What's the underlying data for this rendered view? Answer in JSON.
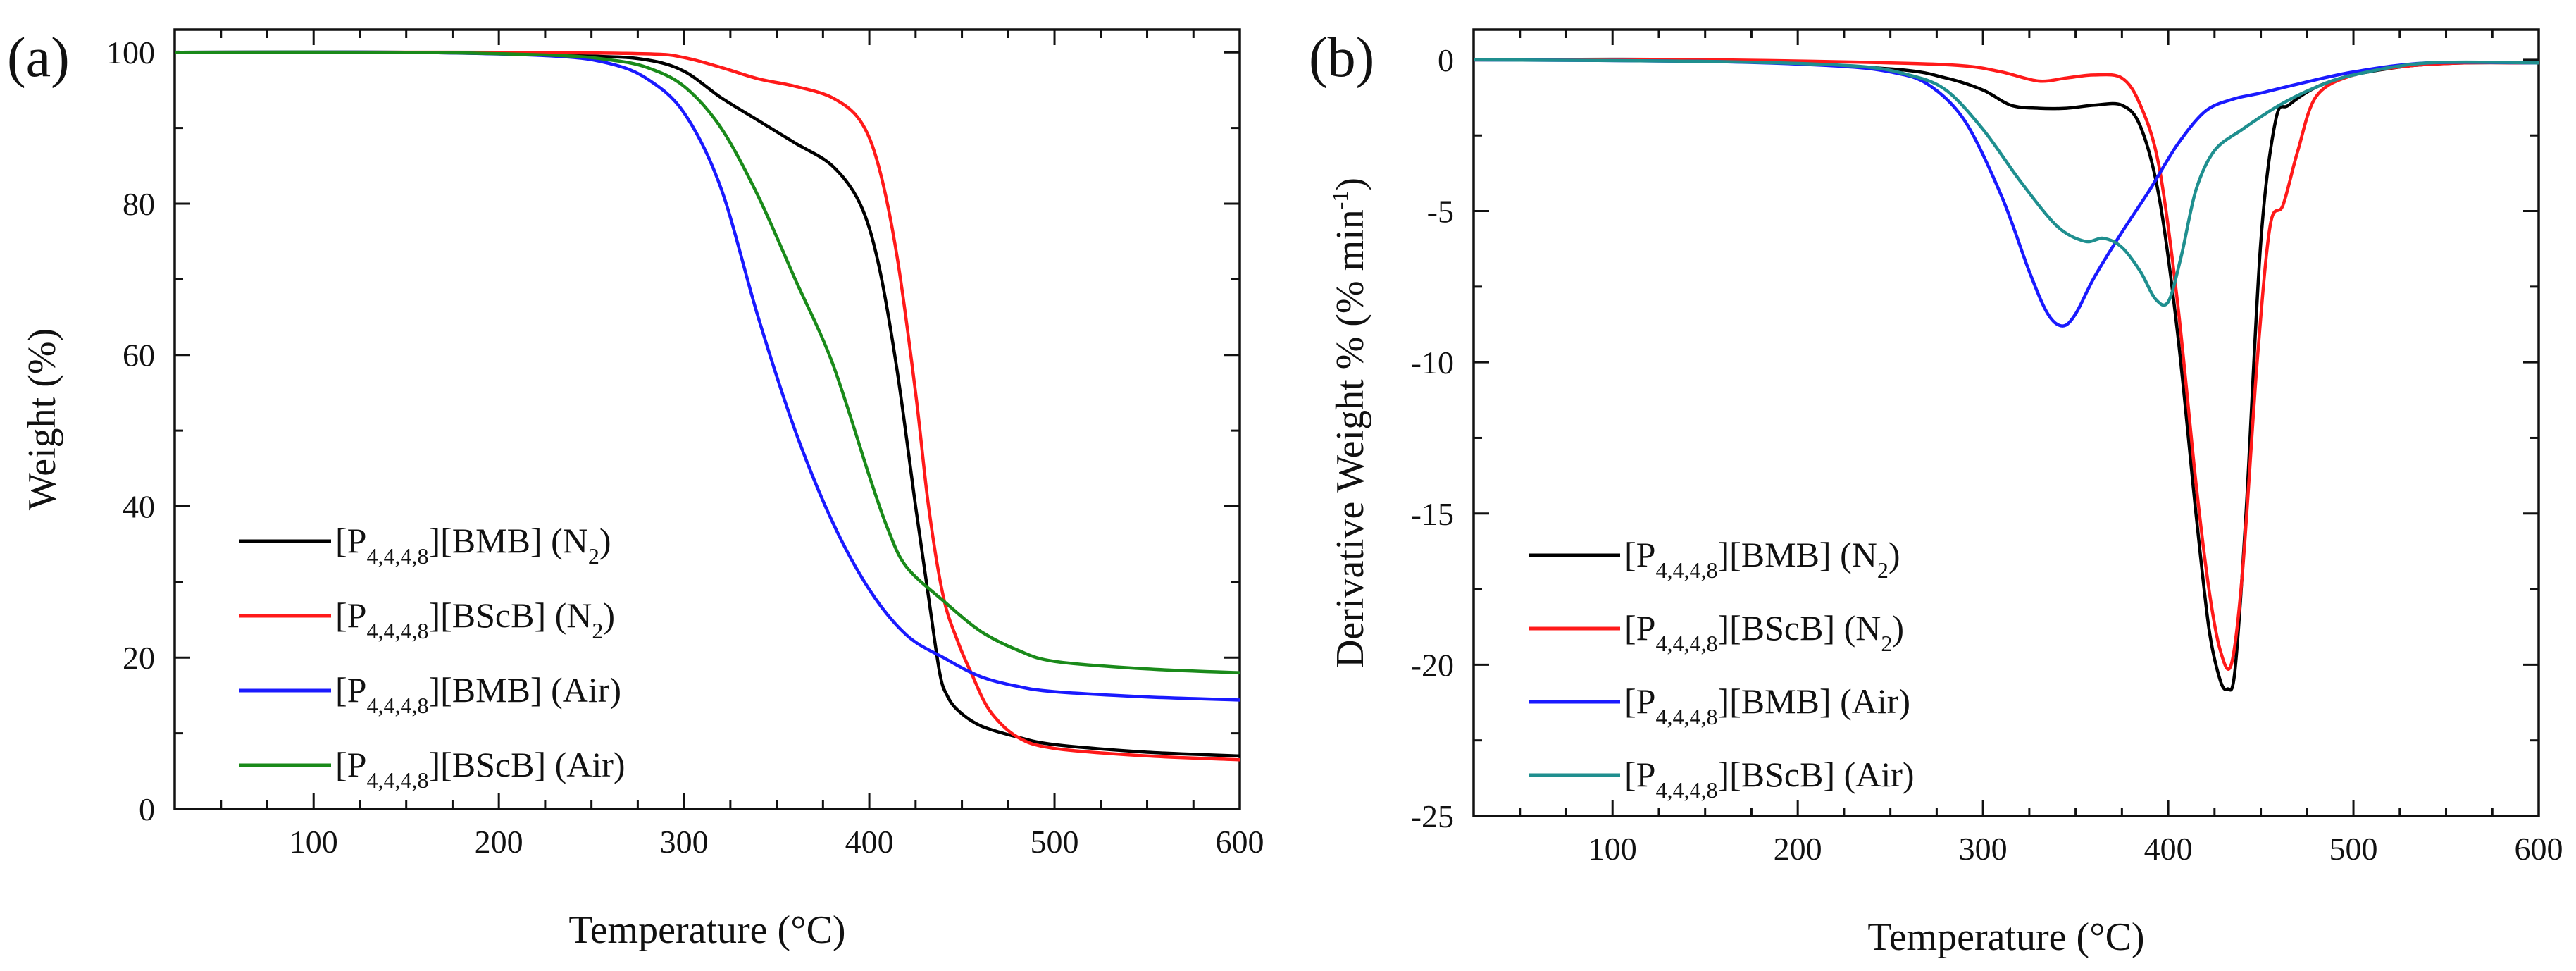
{
  "chart_data": [
    {
      "panel": "(a)",
      "type": "line",
      "title": "",
      "xlabel": "Temperature (°C)",
      "ylabel": "Weight (%)",
      "xlim": [
        25,
        600
      ],
      "ylim": [
        0,
        103
      ],
      "xticks": [
        100,
        200,
        300,
        400,
        500,
        600
      ],
      "yticks": [
        0,
        20,
        40,
        60,
        80,
        100
      ],
      "xtick_labels": [
        "100",
        "200",
        "300",
        "400",
        "500",
        "600"
      ],
      "ytick_labels": [
        "0",
        "20",
        "40",
        "60",
        "80",
        "100"
      ],
      "legend_position": "lower-left",
      "grid": false,
      "series": [
        {
          "name": "[P4,4,4,8][BMB] (N2)",
          "label": {
            "main": "[P",
            "sub": "4,4,4,8",
            "rest": "][BMB] (N",
            "sub2": "2",
            "end": ")"
          },
          "color": "#000000",
          "x": [
            25,
            150,
            250,
            280,
            300,
            320,
            340,
            360,
            380,
            395,
            405,
            415,
            425,
            432,
            438,
            442,
            448,
            460,
            480,
            500,
            550,
            600
          ],
          "y": [
            100,
            100,
            99.5,
            99,
            97.5,
            94,
            91,
            88,
            85,
            80,
            72,
            58,
            40,
            28,
            18,
            15,
            13,
            11,
            9.5,
            8.5,
            7.5,
            7
          ]
        },
        {
          "name": "[P4,4,4,8][BScB] (N2)",
          "label": {
            "main": "[P",
            "sub": "4,4,4,8",
            "rest": "][BScB] (N",
            "sub2": "2",
            "end": ")"
          },
          "color": "#ff1a1a",
          "x": [
            25,
            200,
            280,
            300,
            320,
            340,
            360,
            380,
            395,
            405,
            415,
            425,
            432,
            440,
            448,
            455,
            465,
            480,
            500,
            550,
            600
          ],
          "y": [
            100,
            100,
            99.8,
            99.3,
            98,
            96.5,
            95.5,
            94,
            91,
            85,
            73,
            55,
            40,
            28,
            22,
            18,
            13,
            9.5,
            8,
            7,
            6.5
          ]
        },
        {
          "name": "[P4,4,4,8][BMB] (Air)",
          "label": {
            "main": "[P",
            "sub": "4,4,4,8",
            "rest": "][BMB] (Air)",
            "sub2": "",
            "end": ""
          },
          "color": "#1a1aff",
          "x": [
            25,
            150,
            230,
            260,
            280,
            300,
            320,
            340,
            360,
            380,
            400,
            420,
            440,
            460,
            480,
            500,
            550,
            600
          ],
          "y": [
            100,
            100,
            99.5,
            98.5,
            96.5,
            92,
            82,
            65,
            50,
            38,
            29,
            23,
            20,
            17.5,
            16.2,
            15.5,
            14.8,
            14.4
          ]
        },
        {
          "name": "[P4,4,4,8][BScB] (Air)",
          "label": {
            "main": "[P",
            "sub": "4,4,4,8",
            "rest": "][BScB] (Air)",
            "sub2": "",
            "end": ""
          },
          "color": "#1a8a1a",
          "x": [
            25,
            150,
            230,
            260,
            280,
            300,
            320,
            340,
            360,
            380,
            400,
            410,
            420,
            440,
            460,
            480,
            500,
            550,
            600
          ],
          "y": [
            100,
            100,
            99.6,
            99,
            98,
            95.5,
            90,
            81,
            70,
            59,
            44,
            37,
            32,
            27.5,
            23.5,
            21,
            19.5,
            18.5,
            18
          ]
        }
      ]
    },
    {
      "panel": "(b)",
      "type": "line",
      "title": "",
      "xlabel": "Temperature (°C)",
      "ylabel": "Derivative Weight % (% min",
      "ylabel_sup": "-1",
      "ylabel_end": ")",
      "xlim": [
        25,
        600
      ],
      "ylim": [
        -25,
        1
      ],
      "xticks": [
        100,
        200,
        300,
        400,
        500,
        600
      ],
      "yticks": [
        0,
        -5,
        -10,
        -15,
        -20,
        -25
      ],
      "xtick_labels": [
        "100",
        "200",
        "300",
        "400",
        "500",
        "600"
      ],
      "ytick_labels": [
        "0",
        "-5",
        "-10",
        "-15",
        "-20",
        "-25"
      ],
      "legend_position": "lower-left",
      "grid": false,
      "series": [
        {
          "name": "[P4,4,4,8][BMB] (N2)",
          "label": {
            "main": "[P",
            "sub": "4,4,4,8",
            "rest": "][BMB] (N",
            "sub2": "2",
            "end": ")"
          },
          "color": "#000000",
          "x": [
            25,
            150,
            250,
            280,
            300,
            315,
            330,
            345,
            360,
            375,
            385,
            395,
            405,
            415,
            422,
            428,
            432,
            436,
            442,
            450,
            458,
            465,
            480,
            500,
            530,
            560,
            600
          ],
          "y": [
            0,
            0,
            -0.3,
            -0.6,
            -1.0,
            -1.5,
            -1.6,
            -1.6,
            -1.5,
            -1.5,
            -2.2,
            -4.5,
            -9,
            -15,
            -18.8,
            -20.5,
            -20.8,
            -20.2,
            -15,
            -6,
            -2,
            -1.5,
            -0.9,
            -0.5,
            -0.2,
            -0.1,
            -0.1
          ]
        },
        {
          "name": "[P4,4,4,8][BScB] (N2)",
          "label": {
            "main": "[P",
            "sub": "4,4,4,8",
            "rest": "][BScB] (N",
            "sub2": "2",
            "end": ")"
          },
          "color": "#ff1a1a",
          "x": [
            25,
            150,
            250,
            290,
            310,
            330,
            345,
            360,
            375,
            385,
            395,
            405,
            415,
            422,
            428,
            434,
            440,
            448,
            455,
            462,
            470,
            480,
            500,
            530,
            560,
            600
          ],
          "y": [
            0,
            0,
            -0.1,
            -0.2,
            -0.4,
            -0.7,
            -0.6,
            -0.5,
            -0.6,
            -1.5,
            -3.5,
            -8,
            -14,
            -17.5,
            -19.5,
            -20,
            -17,
            -10,
            -5.5,
            -4.8,
            -3,
            -1.2,
            -0.5,
            -0.2,
            -0.1,
            -0.1
          ]
        },
        {
          "name": "[P4,4,4,8][BMB] (Air)",
          "label": {
            "main": "[P",
            "sub": "4,4,4,8",
            "rest": "][BMB] (Air)",
            "sub2": "",
            "end": ""
          },
          "color": "#1a1aff",
          "x": [
            25,
            150,
            220,
            250,
            270,
            290,
            310,
            325,
            335,
            343,
            350,
            360,
            375,
            390,
            405,
            420,
            435,
            450,
            470,
            500,
            540,
            600
          ],
          "y": [
            0,
            -0.05,
            -0.2,
            -0.4,
            -0.8,
            -2,
            -4.5,
            -7,
            -8.4,
            -8.8,
            -8.4,
            -7.2,
            -5.7,
            -4.3,
            -2.8,
            -1.7,
            -1.3,
            -1.1,
            -0.8,
            -0.4,
            -0.1,
            -0.1
          ]
        },
        {
          "name": "[P4,4,4,8][BScB] (Air)",
          "label": {
            "main": "[P",
            "sub": "4,4,4,8",
            "rest": "][BScB] (Air)",
            "sub2": "",
            "end": ""
          },
          "color": "#1f8f8f",
          "x": [
            25,
            150,
            230,
            260,
            280,
            300,
            320,
            340,
            355,
            365,
            375,
            385,
            393,
            400,
            407,
            415,
            425,
            440,
            460,
            480,
            500,
            540,
            600
          ],
          "y": [
            0,
            -0.05,
            -0.2,
            -0.5,
            -1,
            -2.3,
            -4,
            -5.5,
            -6,
            -5.9,
            -6.2,
            -7,
            -7.9,
            -8,
            -6.5,
            -4.3,
            -3,
            -2.3,
            -1.5,
            -0.9,
            -0.5,
            -0.1,
            -0.1
          ]
        }
      ]
    }
  ]
}
